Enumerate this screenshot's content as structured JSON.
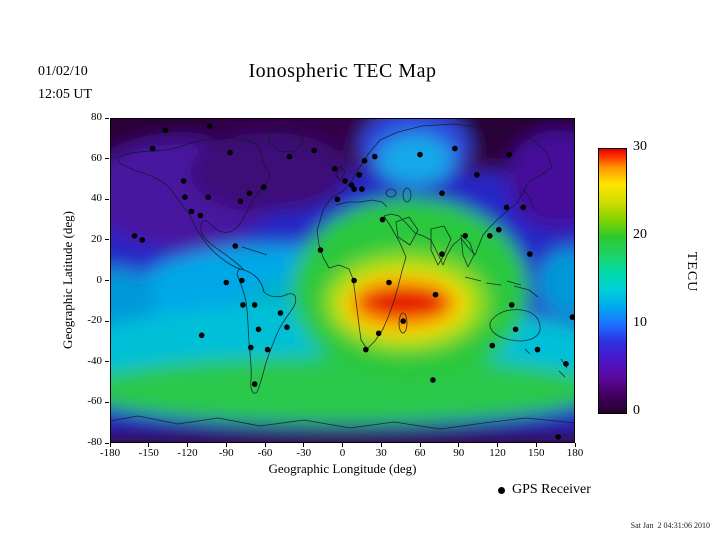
{
  "header": {
    "date": "01/02/10",
    "time": "12:05 UT",
    "title": "Ionospheric TEC Map"
  },
  "legend": {
    "gps_label": "GPS Receiver"
  },
  "footer": {
    "generated": "Sat Jan  2 04:31:06 2010"
  },
  "chart_data": {
    "type": "heatmap",
    "title": "Ionospheric TEC Map",
    "timestamp": {
      "date": "01/02/10",
      "time": "12:05 UT"
    },
    "xlabel": "Geographic Longitude (deg)",
    "ylabel": "Geographic Latitude (deg)",
    "xlim": [
      -180,
      180
    ],
    "ylim": [
      -80,
      80
    ],
    "x_ticks": [
      -180,
      -150,
      -120,
      -90,
      -60,
      -30,
      0,
      30,
      60,
      90,
      120,
      150,
      180
    ],
    "y_ticks": [
      80,
      60,
      40,
      20,
      0,
      -20,
      -40,
      -60,
      -80
    ],
    "grid": false,
    "colorbar": {
      "label": "TECU",
      "min": 0,
      "max": 30,
      "ticks": [
        30,
        20,
        10,
        0
      ],
      "stops": [
        {
          "v": 0,
          "c": "#26002f"
        },
        {
          "v": 2,
          "c": "#43005f"
        },
        {
          "v": 4,
          "c": "#5b0a9e"
        },
        {
          "v": 6,
          "c": "#4b16c8"
        },
        {
          "v": 8,
          "c": "#2f2fe0"
        },
        {
          "v": 10,
          "c": "#1e6eff"
        },
        {
          "v": 12,
          "c": "#00a8f0"
        },
        {
          "v": 14,
          "c": "#00cfd8"
        },
        {
          "v": 16,
          "c": "#00dca8"
        },
        {
          "v": 18,
          "c": "#1ed264"
        },
        {
          "v": 20,
          "c": "#2ec82e"
        },
        {
          "v": 22,
          "c": "#86d400"
        },
        {
          "v": 24,
          "c": "#d2dc00"
        },
        {
          "v": 26,
          "c": "#ffe600"
        },
        {
          "v": 28,
          "c": "#ff9000"
        },
        {
          "v": 29,
          "c": "#ff3c00"
        },
        {
          "v": 30,
          "c": "#e10000"
        }
      ]
    },
    "max_region": {
      "lon": 48,
      "lat": -11,
      "value_tecu": 30
    },
    "polar_min_tecu": 0,
    "gps_receivers": [
      [
        -161,
        22
      ],
      [
        -155,
        20
      ],
      [
        -147,
        65
      ],
      [
        -137,
        74
      ],
      [
        -123,
        49
      ],
      [
        -122,
        41
      ],
      [
        -117,
        34
      ],
      [
        -110,
        32
      ],
      [
        -104,
        41
      ],
      [
        -103,
        76
      ],
      [
        -87,
        63
      ],
      [
        -79,
        39
      ],
      [
        -72,
        43
      ],
      [
        -61,
        46
      ],
      [
        -83,
        17
      ],
      [
        -41,
        61
      ],
      [
        -22,
        64
      ],
      [
        -6,
        55
      ],
      [
        2,
        49
      ],
      [
        7,
        47
      ],
      [
        13,
        52
      ],
      [
        9,
        45
      ],
      [
        -4,
        40
      ],
      [
        15,
        45
      ],
      [
        17,
        59
      ],
      [
        25,
        61
      ],
      [
        31,
        30
      ],
      [
        -17,
        15
      ],
      [
        9,
        0
      ],
      [
        36,
        -1
      ],
      [
        28,
        -26
      ],
      [
        18,
        -34
      ],
      [
        47,
        -20
      ],
      [
        60,
        62
      ],
      [
        77,
        43
      ],
      [
        87,
        65
      ],
      [
        104,
        52
      ],
      [
        129,
        62
      ],
      [
        140,
        36
      ],
      [
        127,
        36
      ],
      [
        121,
        25
      ],
      [
        114,
        22
      ],
      [
        95,
        22
      ],
      [
        77,
        13
      ],
      [
        72,
        -7
      ],
      [
        70,
        -49
      ],
      [
        -78,
        0
      ],
      [
        -90,
        -1
      ],
      [
        -77,
        -12
      ],
      [
        -68,
        -12
      ],
      [
        -65,
        -24
      ],
      [
        -71,
        -33
      ],
      [
        -58,
        -34
      ],
      [
        -48,
        -16
      ],
      [
        -43,
        -23
      ],
      [
        -68,
        -51
      ],
      [
        -109,
        -27
      ],
      [
        116,
        -32
      ],
      [
        134,
        -24
      ],
      [
        131,
        -12
      ],
      [
        151,
        -34
      ],
      [
        173,
        -41
      ],
      [
        178,
        -18
      ],
      [
        145,
        13
      ],
      [
        167,
        -77
      ]
    ]
  }
}
